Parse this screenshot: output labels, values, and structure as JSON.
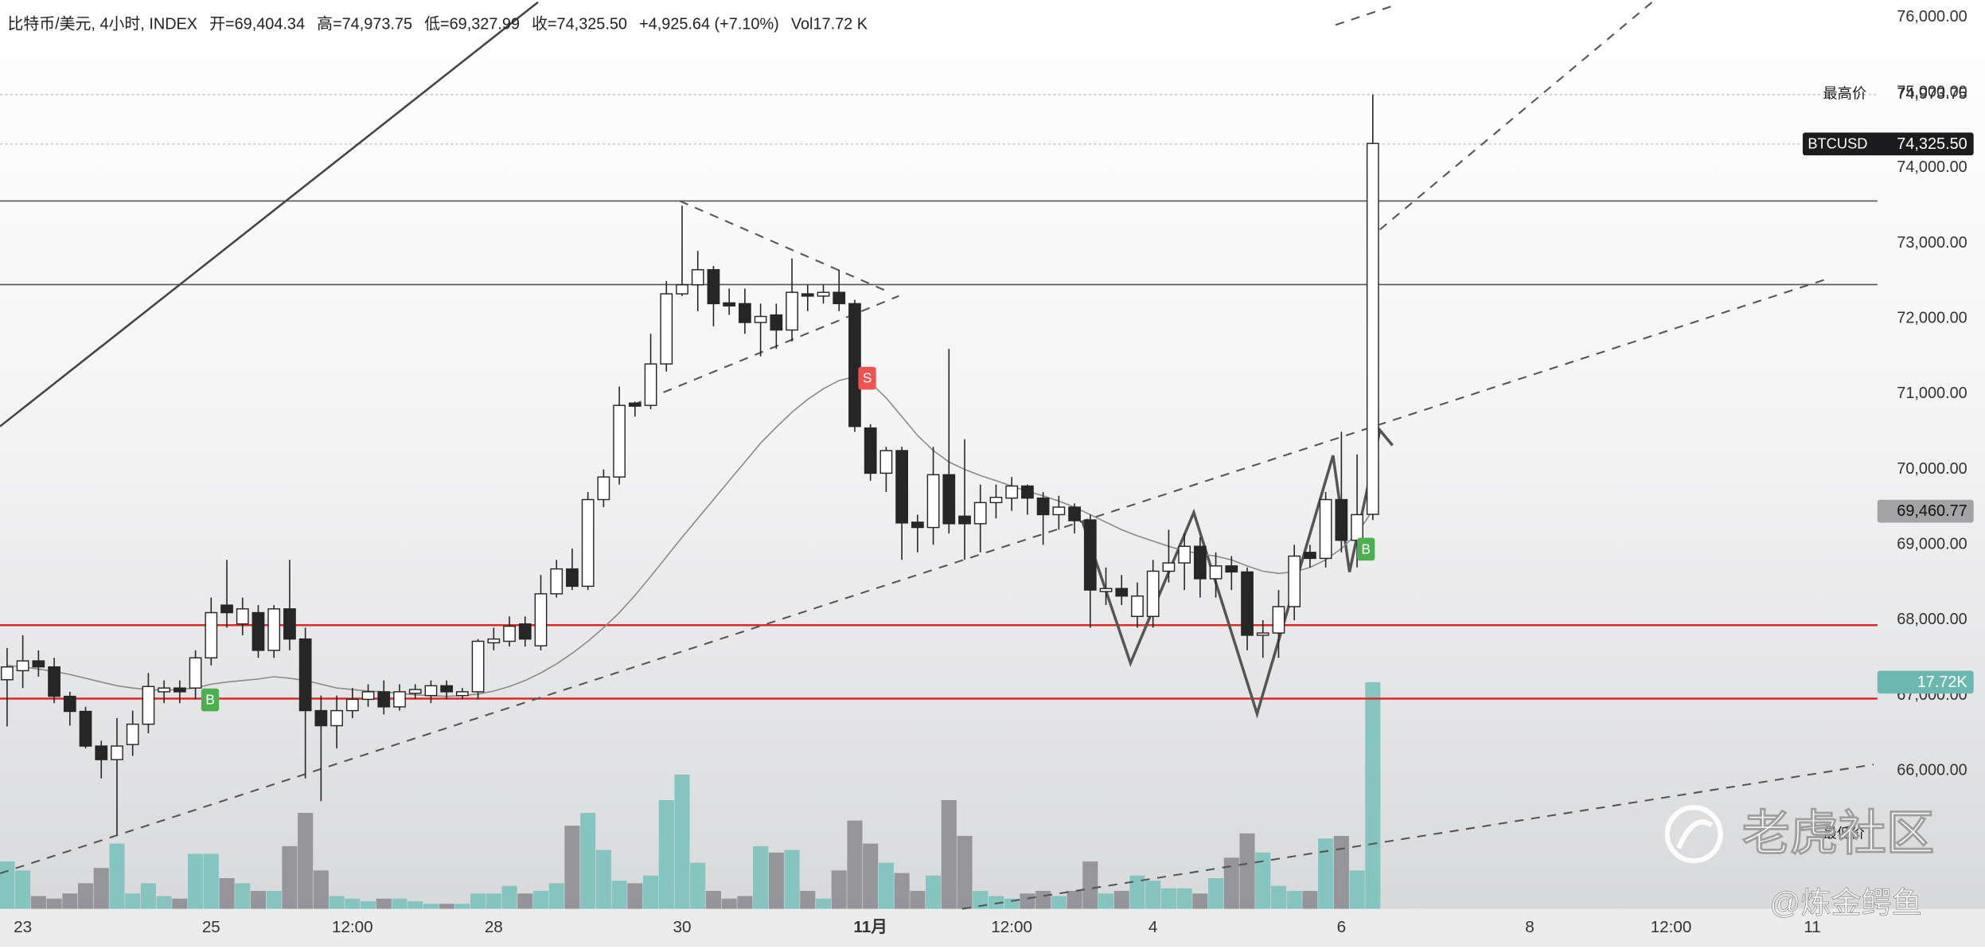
{
  "header": {
    "symbol": "比特币/美元, 4小时, INDEX",
    "open": "开=69,404.34",
    "high": "高=74,973.75",
    "low": "低=69,327.99",
    "close": "收=74,325.50",
    "change": "+4,925.64 (+7.10%)",
    "volume": "Vol17.72 K"
  },
  "price_labels": {
    "high_title": "最高价",
    "high": "74,973.75",
    "symbol": "BTCUSD",
    "last": "74,325.50",
    "ma": "69,460.77",
    "volume": "17.72K",
    "low_title": "最低价"
  },
  "signals": [
    "B",
    "S",
    "B"
  ],
  "watermark": {
    "brand": "老虎社区",
    "author": "@炼金鳄鱼"
  },
  "chart_data": {
    "type": "candlestick",
    "up_color": "#ffffff",
    "down_color": "#262626",
    "wick_color": "#262626",
    "volume_up_color": "#7cc2bb",
    "volume_down_color": "#8d8d92",
    "ma_color": "#8a8a8a",
    "ylim": [
      64170,
      76200
    ],
    "yticks": [
      {
        "value": 66000,
        "label": "66,000.00"
      },
      {
        "value": 67000,
        "label": "67,000.00"
      },
      {
        "value": 68000,
        "label": "68,000.00"
      },
      {
        "value": 69000,
        "label": "69,000.00"
      },
      {
        "value": 70000,
        "label": "70,000.00"
      },
      {
        "value": 71000,
        "label": "71,000.00"
      },
      {
        "value": 72000,
        "label": "72,000.00"
      },
      {
        "value": 73000,
        "label": "73,000.00"
      },
      {
        "value": 74000,
        "label": "74,000.00"
      },
      {
        "value": 75000,
        "label": "75,000.00"
      },
      {
        "value": 76000,
        "label": "76,000.00"
      }
    ],
    "grid": false,
    "categories": [
      null,
      "23",
      null,
      null,
      null,
      null,
      null,
      null,
      null,
      null,
      null,
      null,
      null,
      "25",
      null,
      null,
      null,
      null,
      null,
      null,
      null,
      null,
      "12:00",
      null,
      null,
      null,
      null,
      null,
      null,
      null,
      null,
      "28",
      null,
      null,
      null,
      null,
      null,
      null,
      null,
      null,
      null,
      null,
      null,
      "30",
      null,
      null,
      null,
      null,
      null,
      null,
      null,
      null,
      null,
      null,
      null,
      "11月",
      null,
      null,
      null,
      null,
      null,
      null,
      null,
      null,
      "12:00",
      null,
      null,
      null,
      null,
      null,
      null,
      null,
      null,
      "4",
      null,
      null,
      null,
      null,
      null,
      null,
      null,
      null,
      null,
      null,
      null,
      "6",
      null,
      null,
      null,
      null,
      null,
      null,
      null,
      null,
      null,
      null,
      null,
      "8",
      null,
      null,
      null,
      null,
      null,
      null,
      null,
      null,
      "12:00",
      null,
      null,
      null,
      null,
      null,
      null,
      null,
      null,
      "11"
    ],
    "open": [
      67210,
      67330,
      67460,
      67380,
      66990,
      66790,
      66330,
      66150,
      66350,
      66620,
      67050,
      67100,
      67100,
      67500,
      68200,
      67950,
      68100,
      67600,
      68150,
      67750,
      66800,
      66600,
      66800,
      66950,
      67050,
      66850,
      67030,
      67000,
      67130,
      67000,
      67050,
      67700,
      67720,
      67950,
      67660,
      68350,
      68680,
      68450,
      69600,
      69900,
      70880,
      70850,
      71400,
      72330,
      72450,
      72650,
      72210,
      72200,
      71950,
      72050,
      71850,
      72330,
      72300,
      72350,
      72200,
      70550,
      69950,
      70250,
      69300,
      69230,
      69930,
      69380,
      69280,
      69560,
      69620,
      69780,
      69620,
      69400,
      69500,
      69330,
      68380,
      68420,
      68050,
      68050,
      68650,
      68760,
      68980,
      68550,
      68720,
      68640,
      67800,
      67830,
      68180,
      68900,
      68820,
      69600,
      69060,
      69404.34,
      null,
      null,
      null,
      null,
      null,
      null,
      null,
      null,
      null,
      null,
      null,
      null,
      null,
      null,
      null,
      null,
      null,
      null,
      null,
      null,
      null,
      null,
      null,
      null,
      null,
      null,
      null,
      null
    ],
    "high": [
      67630,
      67800,
      67600,
      67500,
      67050,
      66850,
      66400,
      66700,
      66800,
      67300,
      67200,
      67200,
      67600,
      68300,
      68800,
      68300,
      68200,
      68200,
      68800,
      67900,
      67000,
      67000,
      67100,
      67150,
      67200,
      67150,
      67150,
      67200,
      67200,
      67100,
      67750,
      67900,
      68050,
      68050,
      68600,
      68800,
      68950,
      69700,
      70000,
      71100,
      70900,
      71800,
      72500,
      73500,
      72900,
      72700,
      72400,
      72400,
      72200,
      72200,
      72800,
      72450,
      72450,
      72650,
      72250,
      70600,
      70300,
      70300,
      69400,
      70300,
      71600,
      70400,
      69800,
      69800,
      69900,
      69800,
      69700,
      69650,
      69550,
      69400,
      68700,
      68600,
      68500,
      68800,
      69200,
      69150,
      69100,
      68900,
      68850,
      68700,
      68000,
      68400,
      69000,
      69000,
      69700,
      70500,
      70200,
      74973.75,
      null,
      null,
      null,
      null,
      null,
      null,
      null,
      null,
      null,
      null,
      null,
      null,
      null,
      null,
      null,
      null,
      null,
      null,
      null,
      null,
      null,
      null,
      null,
      null,
      null,
      null,
      null,
      null
    ],
    "low": [
      66590,
      67100,
      67250,
      66900,
      66600,
      66300,
      65900,
      65150,
      66200,
      66500,
      66900,
      66900,
      66950,
      67400,
      67900,
      67800,
      67500,
      67500,
      67600,
      65900,
      65600,
      66300,
      66700,
      66850,
      66750,
      66800,
      66950,
      66900,
      66950,
      66950,
      66950,
      67600,
      67650,
      67650,
      67600,
      68300,
      68400,
      68400,
      69500,
      69800,
      70700,
      70800,
      71300,
      72300,
      72100,
      71900,
      72050,
      71800,
      71500,
      71600,
      71700,
      72100,
      72200,
      72100,
      70500,
      69850,
      69700,
      68800,
      68900,
      69000,
      69150,
      68800,
      68900,
      69350,
      69450,
      69400,
      69000,
      69200,
      69150,
      67900,
      68200,
      68200,
      67900,
      67900,
      68500,
      68400,
      68300,
      68300,
      68400,
      67600,
      67500,
      67500,
      68000,
      68700,
      68700,
      68900,
      68700,
      69327.99,
      null,
      null,
      null,
      null,
      null,
      null,
      null,
      null,
      null,
      null,
      null,
      null,
      null,
      null,
      null,
      null,
      null,
      null,
      null,
      null,
      null,
      null,
      null,
      null,
      null,
      null,
      null,
      null
    ],
    "close": [
      67380,
      67460,
      67380,
      66990,
      66790,
      66330,
      66150,
      66330,
      66620,
      67120,
      67100,
      67050,
      67500,
      68100,
      68100,
      68150,
      67600,
      68150,
      67750,
      66800,
      66600,
      66800,
      66950,
      67050,
      66850,
      67050,
      67080,
      67130,
      67050,
      67050,
      67720,
      67750,
      67920,
      67750,
      68350,
      68680,
      68450,
      69600,
      69900,
      70850,
      70840,
      71400,
      72330,
      72450,
      72650,
      72200,
      72170,
      71950,
      72030,
      71850,
      72350,
      72300,
      72350,
      72200,
      70570,
      69950,
      70250,
      69290,
      69230,
      69930,
      69280,
      69280,
      69560,
      69630,
      69780,
      69620,
      69400,
      69500,
      69320,
      68400,
      68420,
      68320,
      68320,
      68650,
      68760,
      68980,
      68550,
      68720,
      68640,
      67800,
      67830,
      68180,
      68850,
      68820,
      69600,
      69060,
      69400,
      74325.5,
      null,
      null,
      null,
      null,
      null,
      null,
      null,
      null,
      null,
      null,
      null,
      null,
      null,
      null,
      null,
      null,
      null,
      null,
      null,
      null,
      null,
      null,
      null,
      null,
      null,
      null,
      null,
      null
    ],
    "volume": [
      3.7,
      3.0,
      1.0,
      0.8,
      1.2,
      2.0,
      3.2,
      5.1,
      1.2,
      2.0,
      1.0,
      0.8,
      4.3,
      4.3,
      2.4,
      2.0,
      1.4,
      1.4,
      4.9,
      7.5,
      3.0,
      1.0,
      0.8,
      0.6,
      0.8,
      0.8,
      0.6,
      0.4,
      0.4,
      0.4,
      1.2,
      1.2,
      1.8,
      1.2,
      1.4,
      2.0,
      6.5,
      7.5,
      4.6,
      2.2,
      2.0,
      2.6,
      8.5,
      10.5,
      3.6,
      1.4,
      0.8,
      1.0,
      4.9,
      4.4,
      4.6,
      1.4,
      0.8,
      3.0,
      6.9,
      5.1,
      3.6,
      2.8,
      1.4,
      2.6,
      8.5,
      5.7,
      1.4,
      1.0,
      0.8,
      1.2,
      1.4,
      1.0,
      1.4,
      3.7,
      1.2,
      1.4,
      2.6,
      2.2,
      1.6,
      1.6,
      1.2,
      2.4,
      4.0,
      5.9,
      4.4,
      1.8,
      1.4,
      1.4,
      5.5,
      5.7,
      3.0,
      17.72,
      null,
      null,
      null,
      null,
      null,
      null,
      null,
      null,
      null,
      null,
      null,
      null,
      null,
      null,
      null,
      null,
      null,
      null,
      null,
      null,
      null,
      null,
      null,
      null,
      null,
      null,
      null,
      null
    ],
    "ma": [
      67400,
      67380,
      67350,
      67320,
      67280,
      67230,
      67180,
      67130,
      67100,
      67080,
      67070,
      67080,
      67100,
      67150,
      67180,
      67200,
      67220,
      67250,
      67230,
      67200,
      67150,
      67100,
      67080,
      67060,
      67050,
      67030,
      67010,
      67000,
      66990,
      67000,
      67020,
      67060,
      67120,
      67200,
      67300,
      67420,
      67560,
      67720,
      67900,
      68100,
      68330,
      68580,
      68840,
      69100,
      69350,
      69600,
      69850,
      70100,
      70350,
      70560,
      70760,
      70930,
      71070,
      71180,
      71230,
      71150,
      70950,
      70700,
      70450,
      70250,
      70100,
      70000,
      69920,
      69850,
      69780,
      69710,
      69650,
      69580,
      69500,
      69400,
      69300,
      69200,
      69120,
      69050,
      68980,
      68920,
      68880,
      68850,
      68800,
      68720,
      68650,
      68620,
      68640,
      68700,
      68800,
      68950,
      69150,
      69460.77,
      null,
      null,
      null,
      null,
      null,
      null,
      null,
      null,
      null,
      null,
      null,
      null,
      null,
      null,
      null,
      null,
      null,
      null,
      null,
      null,
      null,
      null,
      null,
      null,
      null,
      null,
      null,
      null
    ]
  }
}
